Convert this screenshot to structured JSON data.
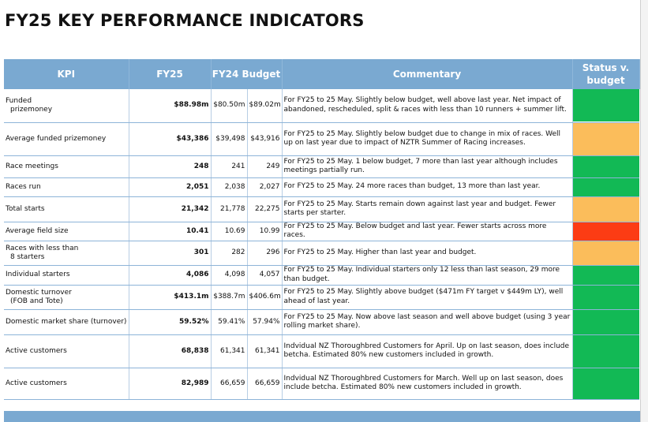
{
  "title": "FY25 KEY PERFORMANCE INDICATORS",
  "headers": {
    "kpi": "KPI",
    "fy25": "FY25",
    "fy24_budget": "FY24 Budget",
    "commentary": "Commentary",
    "status": "Status v. budget"
  },
  "status_colors": {
    "green": "#12b955",
    "amber": "#fbbd5b",
    "red": "#fc3c14"
  },
  "rows": [
    {
      "kpi": "Funded",
      "kpi2": "prizemoney",
      "fy25": "$88.98m",
      "fy24": "$80.50m",
      "budget": "$89.02m",
      "commentary": "For FY25 to 25 May. Slightly below budget, well above last year. Net impact of abandoned, rescheduled, split & races with less than 10 runners + summer lift.",
      "status": "green"
    },
    {
      "kpi": "Average funded prizemoney",
      "kpi2": "",
      "fy25": "$43,386",
      "fy24": "$39,498",
      "budget": "$43,916",
      "commentary": "For FY25 to 25 May. Slightly below budget due to change in mix of races. Well up on last year due to impact of NZTR Summer of Racing increases.",
      "status": "amber"
    },
    {
      "kpi": "Race meetings",
      "kpi2": "",
      "fy25": "248",
      "fy24": "241",
      "budget": "249",
      "commentary": "For FY25 to 25 May. 1 below budget, 7 more than last year although includes meetings partially run.",
      "status": "green"
    },
    {
      "kpi": "Races run",
      "kpi2": "",
      "fy25": "2,051",
      "fy24": "2,038",
      "budget": "2,027",
      "commentary": "For FY25 to 25 May. 24 more races than budget, 13 more than last year.",
      "status": "green"
    },
    {
      "kpi": "Total starts",
      "kpi2": "",
      "fy25": "21,342",
      "fy24": "21,778",
      "budget": "22,275",
      "commentary": "For FY25 to 25 May. Starts remain down against last year and budget. Fewer starts per starter.",
      "status": "amber"
    },
    {
      "kpi": "Average field size",
      "kpi2": "",
      "fy25": "10.41",
      "fy24": "10.69",
      "budget": "10.99",
      "commentary": "For FY25 to 25 May. Below budget and last year. Fewer starts across more races.",
      "status": "red"
    },
    {
      "kpi": "Races with less than",
      "kpi2": "8 starters",
      "fy25": "301",
      "fy24": "282",
      "budget": "296",
      "commentary": "For FY25 to 25 May. Higher than last year and budget.",
      "status": "amber"
    },
    {
      "kpi": "Individual starters",
      "kpi2": "",
      "fy25": "4,086",
      "fy24": "4,098",
      "budget": "4,057",
      "commentary": "For FY25 to 25 May. Individual starters only 12 less than last season, 29 more than budget.",
      "status": "green"
    },
    {
      "kpi": "Domestic turnover",
      "kpi2": "(FOB and Tote)",
      "fy25": "$413.1m",
      "fy24": "$388.7m",
      "budget": "$406.6m",
      "commentary": "For FY25 to 25 May. Slightly above budget ($471m FY target v $449m LY), well ahead of last year.",
      "status": "green"
    },
    {
      "kpi": "Domestic market share (turnover)",
      "kpi2": "",
      "fy25": "59.52%",
      "fy24": "59.41%",
      "budget": "57.94%",
      "commentary": "For FY25 to 25 May. Now above last season and well above budget (using 3 year rolling market share).",
      "status": "green"
    },
    {
      "kpi": "Active customers",
      "kpi2": "",
      "fy25": "68,838",
      "fy24": "61,341",
      "budget": "61,341",
      "commentary": "Indvidual NZ Thoroughbred Customers for April.  Up on last season, does include betcha. Estimated 80% new customers included in growth.",
      "status": "green"
    },
    {
      "kpi": "Active customers",
      "kpi2": "",
      "fy25": "82,989",
      "fy24": "66,659",
      "budget": "66,659",
      "commentary": "Indvidual NZ Thoroughbred Customers for March.  Well up on last season, does include betcha. Estimated 80% new customers included in growth.",
      "status": "green"
    }
  ]
}
